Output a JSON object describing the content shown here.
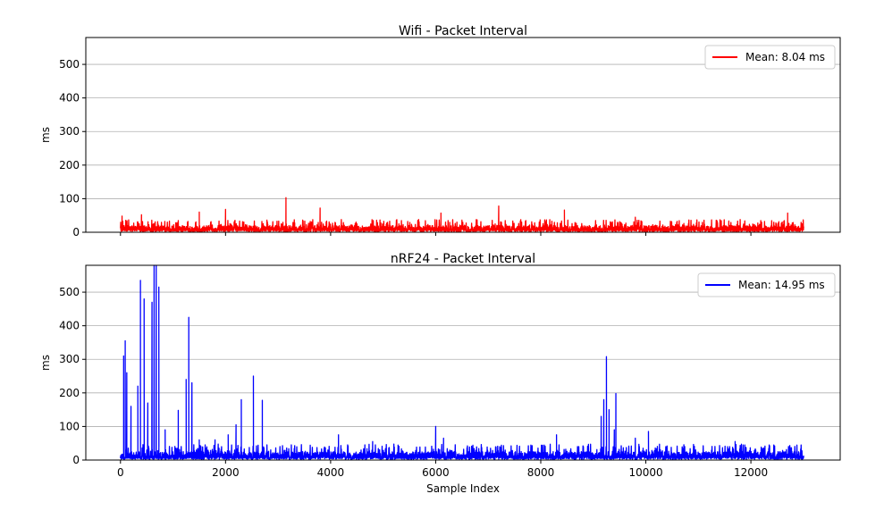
{
  "chart_data": [
    {
      "type": "line",
      "title": "Wifi - Packet Interval",
      "xlabel": "",
      "ylabel": "ms",
      "xlim": [
        -660,
        13700
      ],
      "ylim": [
        0,
        580
      ],
      "xticks": [
        0,
        2000,
        4000,
        6000,
        8000,
        10000,
        12000
      ],
      "yticks": [
        0,
        100,
        200,
        300,
        400,
        500
      ],
      "ytick_labels": [
        "0",
        "100",
        "200",
        "300",
        "400",
        "500"
      ],
      "x_tick_labels_visible": false,
      "grid": "y",
      "legend": {
        "position": "top-right",
        "entries": [
          "Mean: 8.04 ms"
        ]
      },
      "series": [
        {
          "name": "Mean: 8.04 ms",
          "color": "#ff0000",
          "n_samples": 13000,
          "baseline": [
            5,
            20
          ],
          "peaks": [
            {
              "x": 30,
              "y": 48
            },
            {
              "x": 400,
              "y": 52
            },
            {
              "x": 1500,
              "y": 60
            },
            {
              "x": 2000,
              "y": 68
            },
            {
              "x": 3150,
              "y": 103
            },
            {
              "x": 3800,
              "y": 72
            },
            {
              "x": 6100,
              "y": 57
            },
            {
              "x": 7200,
              "y": 78
            },
            {
              "x": 8450,
              "y": 66
            },
            {
              "x": 9800,
              "y": 45
            },
            {
              "x": 12700,
              "y": 57
            }
          ]
        }
      ]
    },
    {
      "type": "line",
      "title": "nRF24 - Packet Interval",
      "xlabel": "Sample Index",
      "ylabel": "ms",
      "xlim": [
        -660,
        13700
      ],
      "ylim": [
        0,
        580
      ],
      "xticks": [
        0,
        2000,
        4000,
        6000,
        8000,
        10000,
        12000
      ],
      "xtick_labels": [
        "0",
        "2000",
        "4000",
        "6000",
        "8000",
        "10000",
        "12000"
      ],
      "yticks": [
        0,
        100,
        200,
        300,
        400,
        500
      ],
      "ytick_labels": [
        "0",
        "100",
        "200",
        "300",
        "400",
        "500"
      ],
      "grid": "y",
      "legend": {
        "position": "top-right",
        "entries": [
          "Mean: 14.95 ms"
        ]
      },
      "series": [
        {
          "name": "Mean: 14.95 ms",
          "color": "#0000ff",
          "n_samples": 13000,
          "baseline": [
            5,
            25
          ],
          "peaks": [
            {
              "x": 60,
              "y": 310
            },
            {
              "x": 90,
              "y": 355
            },
            {
              "x": 120,
              "y": 260
            },
            {
              "x": 200,
              "y": 160
            },
            {
              "x": 330,
              "y": 220
            },
            {
              "x": 380,
              "y": 535
            },
            {
              "x": 450,
              "y": 480
            },
            {
              "x": 520,
              "y": 170
            },
            {
              "x": 600,
              "y": 470
            },
            {
              "x": 640,
              "y": 580
            },
            {
              "x": 680,
              "y": 580
            },
            {
              "x": 730,
              "y": 515
            },
            {
              "x": 850,
              "y": 90
            },
            {
              "x": 1100,
              "y": 148
            },
            {
              "x": 1250,
              "y": 240
            },
            {
              "x": 1300,
              "y": 425
            },
            {
              "x": 1360,
              "y": 230
            },
            {
              "x": 1500,
              "y": 60
            },
            {
              "x": 1800,
              "y": 60
            },
            {
              "x": 2050,
              "y": 75
            },
            {
              "x": 2200,
              "y": 105
            },
            {
              "x": 2300,
              "y": 180
            },
            {
              "x": 2530,
              "y": 250
            },
            {
              "x": 2700,
              "y": 178
            },
            {
              "x": 4150,
              "y": 75
            },
            {
              "x": 4800,
              "y": 55
            },
            {
              "x": 6000,
              "y": 100
            },
            {
              "x": 6150,
              "y": 65
            },
            {
              "x": 8300,
              "y": 75
            },
            {
              "x": 9150,
              "y": 130
            },
            {
              "x": 9200,
              "y": 180
            },
            {
              "x": 9250,
              "y": 308
            },
            {
              "x": 9300,
              "y": 150
            },
            {
              "x": 9400,
              "y": 90
            },
            {
              "x": 9430,
              "y": 198
            },
            {
              "x": 9800,
              "y": 65
            },
            {
              "x": 10050,
              "y": 85
            },
            {
              "x": 11700,
              "y": 55
            }
          ]
        }
      ]
    }
  ]
}
